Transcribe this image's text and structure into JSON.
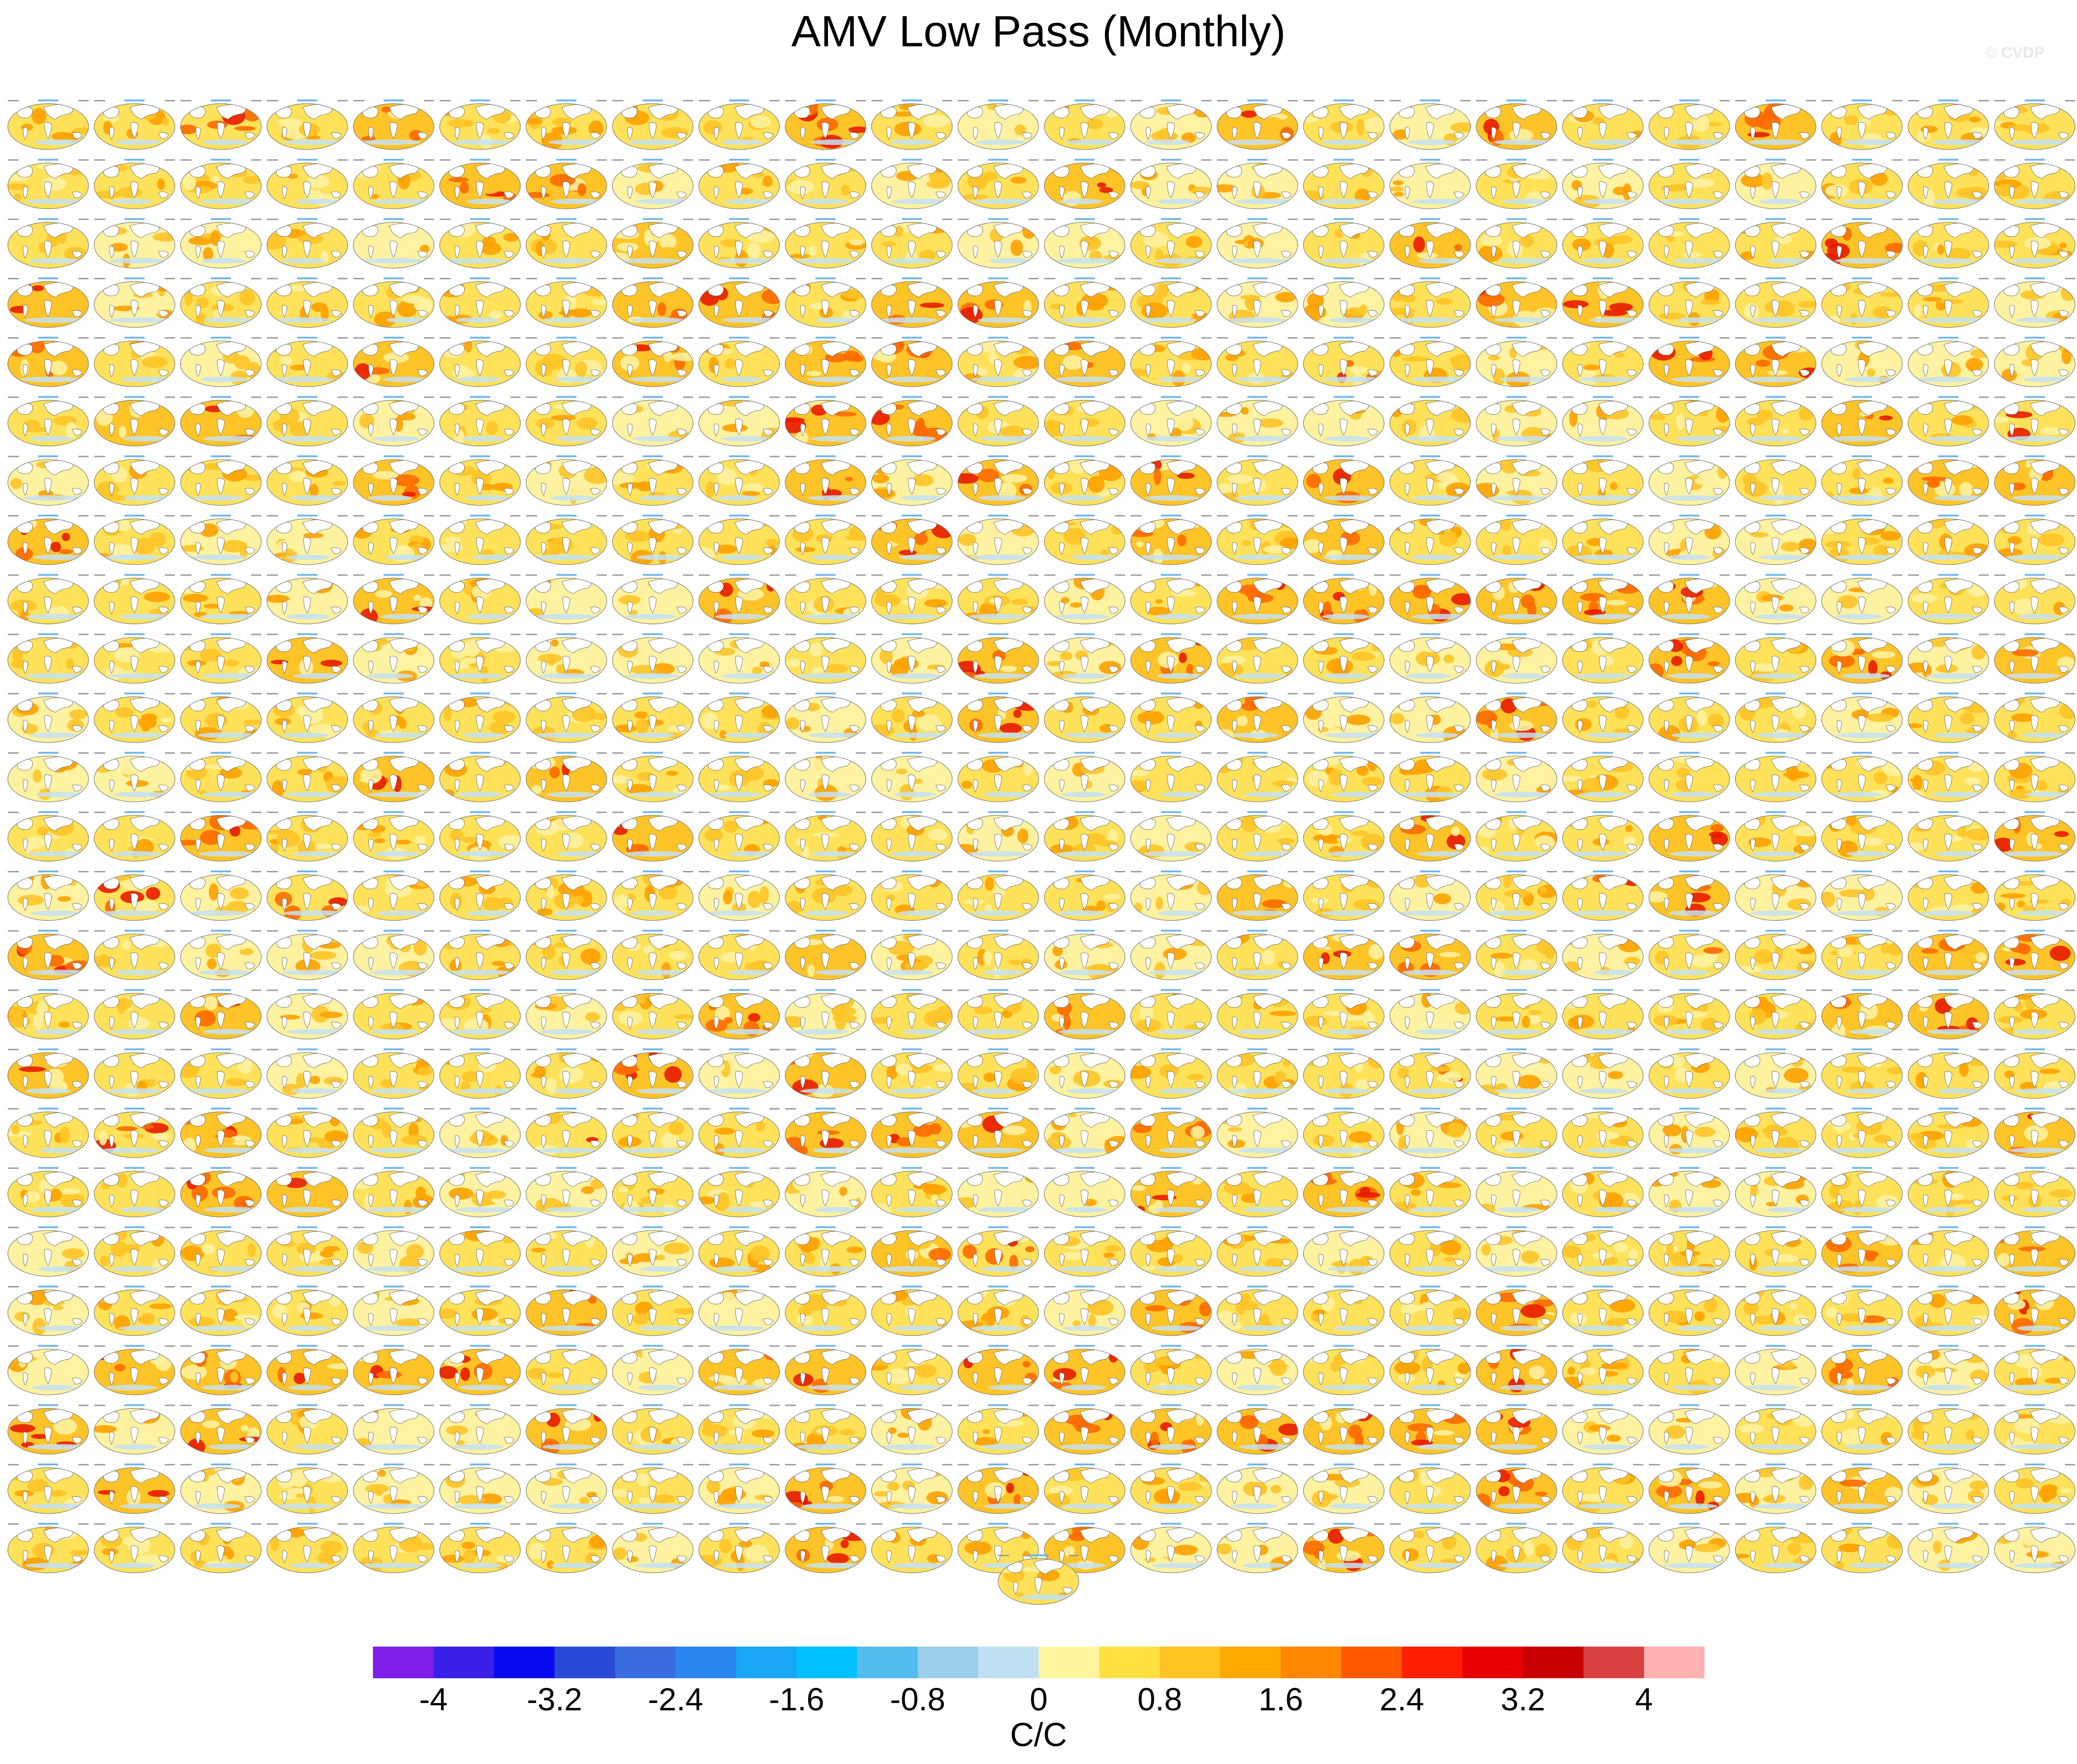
{
  "figure": {
    "title": "AMV Low Pass (Monthly)",
    "credit": "© CVDP",
    "panel_grid": {
      "columns": 24,
      "rows": 25,
      "extra_panels_last_row": 1
    }
  },
  "colorbar": {
    "units": "C/C",
    "tick_labels": [
      "-4",
      "-3.2",
      "-2.4",
      "-1.6",
      "-0.8",
      "0",
      "0.8",
      "1.6",
      "2.4",
      "3.2",
      "4"
    ],
    "colors": [
      "#7d1fe8",
      "#3a1fe8",
      "#0a0af0",
      "#2b4ad8",
      "#3a6ee0",
      "#2a86f0",
      "#18a6f5",
      "#00c0ff",
      "#52bcef",
      "#9ccdea",
      "#bfe0f2",
      "#fff5a0",
      "#ffe040",
      "#ffc420",
      "#ffa800",
      "#ff8800",
      "#ff5800",
      "#ff1e00",
      "#e80000",
      "#c80000",
      "#d94040",
      "#ffb0b0"
    ],
    "palette": {
      "ocean_pale": "#fff2a0",
      "ocean_light": "#ffe25a",
      "ocean_mid": "#ffc427",
      "ocean_warm": "#ffa100",
      "ocean_hot": "#ff6a00",
      "ocean_red": "#e81c00",
      "ocean_cool": "#c4e2f4",
      "land": "#ffffff",
      "outline": "#555555"
    }
  }
}
